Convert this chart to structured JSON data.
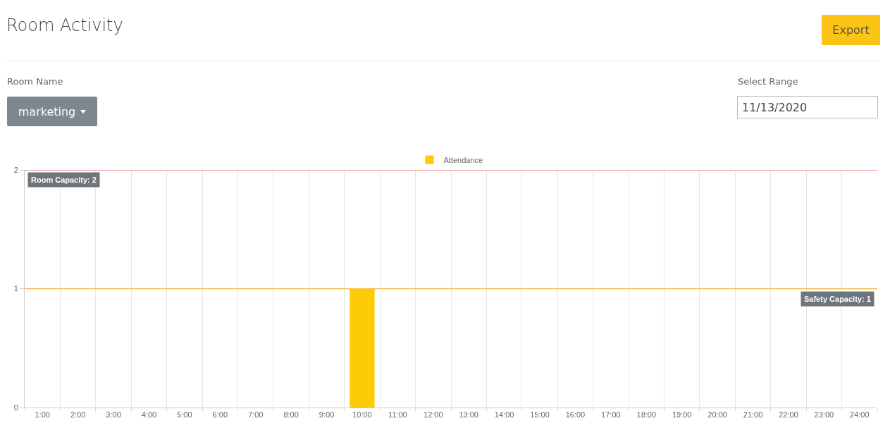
{
  "chart_data": {
    "type": "bar",
    "title": "Room Activity",
    "categories": [
      "1:00",
      "2:00",
      "3:00",
      "4:00",
      "5:00",
      "6:00",
      "7:00",
      "8:00",
      "9:00",
      "10:00",
      "11:00",
      "12:00",
      "13:00",
      "14:00",
      "15:00",
      "16:00",
      "17:00",
      "18:00",
      "19:00",
      "20:00",
      "21:00",
      "22:00",
      "23:00",
      "24:00"
    ],
    "series": [
      {
        "name": "Attendance",
        "color": "#fccb05",
        "values": [
          0,
          0,
          0,
          0,
          0,
          0,
          0,
          0,
          0,
          1,
          0,
          0,
          0,
          0,
          0,
          0,
          0,
          0,
          0,
          0,
          0,
          0,
          0,
          0
        ]
      }
    ],
    "ylim": [
      0,
      2
    ],
    "yticks": [
      0,
      1,
      2
    ],
    "grid": "x",
    "legend": "top",
    "ref_lines": [
      {
        "axis": "y",
        "value": 2,
        "label": "Room Capacity: 2",
        "color": "#e8837a"
      },
      {
        "axis": "y",
        "value": 1,
        "label": "Safety Capacity: 1",
        "color": "#f5b335"
      }
    ],
    "annotations": [
      "Export",
      "Room Name",
      "marketing",
      "Select Range",
      "11/13/2020"
    ]
  }
}
